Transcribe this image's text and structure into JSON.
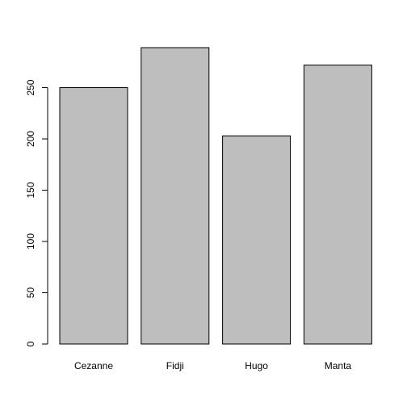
{
  "chart_data": {
    "type": "bar",
    "title": "",
    "xlabel": "",
    "ylabel": "",
    "categories": [
      "Cezanne",
      "Fidji",
      "Hugo",
      "Manta"
    ],
    "values": [
      250,
      289,
      203,
      272
    ],
    "ylim": [
      0,
      289
    ],
    "yticks": [
      0,
      50,
      100,
      150,
      200,
      250
    ],
    "grid": false,
    "bar_color": "#bebebe",
    "border_color": "#000000"
  }
}
